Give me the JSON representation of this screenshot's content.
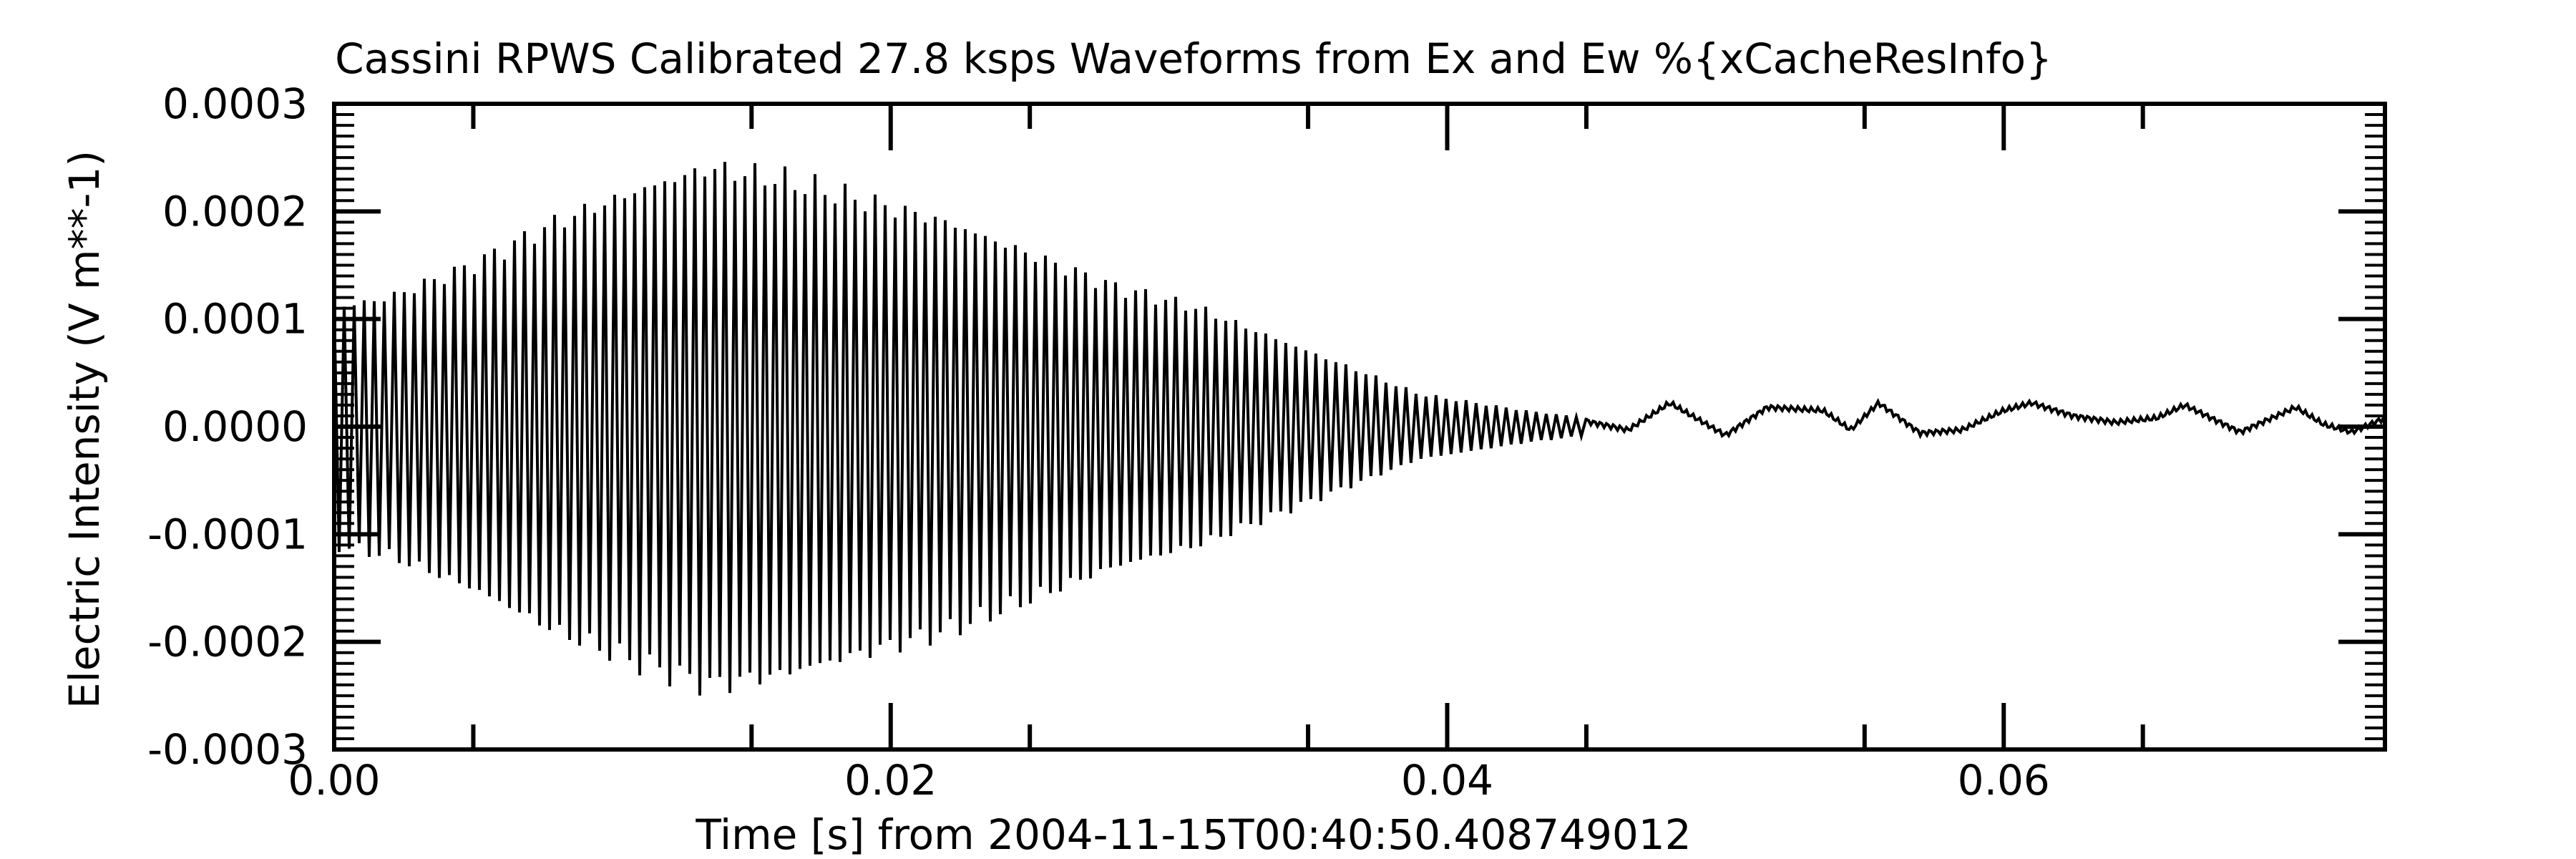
{
  "chart_data": {
    "type": "line",
    "title": "Cassini RPWS Calibrated 27.8 ksps Waveforms from Ex and Ew %{xCacheResInfo}",
    "xlabel": "Time [s] from 2004-11-15T00:40:50.408749012",
    "ylabel": "Electric Intensity (V m**-1)",
    "xlim": [
      0.0,
      0.0737
    ],
    "ylim": [
      -0.0003,
      0.0003
    ],
    "x_ticks": [
      {
        "value": 0.0,
        "label": "0.00"
      },
      {
        "value": 0.02,
        "label": "0.02"
      },
      {
        "value": 0.04,
        "label": "0.04"
      },
      {
        "value": 0.06,
        "label": "0.06"
      }
    ],
    "y_ticks": [
      {
        "value": 0.0003,
        "label": "0.0003"
      },
      {
        "value": 0.0002,
        "label": "0.0002"
      },
      {
        "value": 0.0001,
        "label": "0.0001"
      },
      {
        "value": 0.0,
        "label": "0.0000"
      },
      {
        "value": -0.0001,
        "label": "-0.0001"
      },
      {
        "value": -0.0002,
        "label": "-0.0002"
      },
      {
        "value": -0.0003,
        "label": "-0.0003"
      }
    ],
    "grid": false,
    "series": [
      {
        "color": "#000000",
        "envelope": {
          "x": [
            0.0,
            0.002,
            0.005,
            0.008,
            0.011,
            0.0135,
            0.016,
            0.019,
            0.022,
            0.025,
            0.028,
            0.031,
            0.034,
            0.037,
            0.039,
            0.041,
            0.043,
            0.045
          ],
          "amplitude": [
            0.00011,
            0.00012,
            0.00015,
            0.00019,
            0.00022,
            0.00024,
            0.00023,
            0.00021,
            0.00019,
            0.00016,
            0.00013,
            0.00011,
            8e-05,
            5e-05,
            3e-05,
            2.2e-05,
            1.4e-05,
            8e-06
          ],
          "cycle_s": 0.00036
        },
        "low_frequency": {
          "x": [
            0.045,
            0.0465,
            0.048,
            0.05,
            0.0515,
            0.0535,
            0.0545,
            0.0555,
            0.057,
            0.0585,
            0.06,
            0.061,
            0.0625,
            0.064,
            0.0655,
            0.0665,
            0.0685,
            0.0705,
            0.0715,
            0.0725,
            0.0737
          ],
          "y": [
            5e-06,
            -3e-06,
            2.2e-05,
            -8e-06,
            1.8e-05,
            1.5e-05,
            -3e-06,
            2.2e-05,
            -6e-06,
            -3e-06,
            1.5e-05,
            2.2e-05,
            1e-05,
            4e-06,
            8e-06,
            2e-05,
            -5e-06,
            1.8e-05,
            2e-06,
            -5e-06,
            8e-06
          ]
        }
      }
    ]
  }
}
